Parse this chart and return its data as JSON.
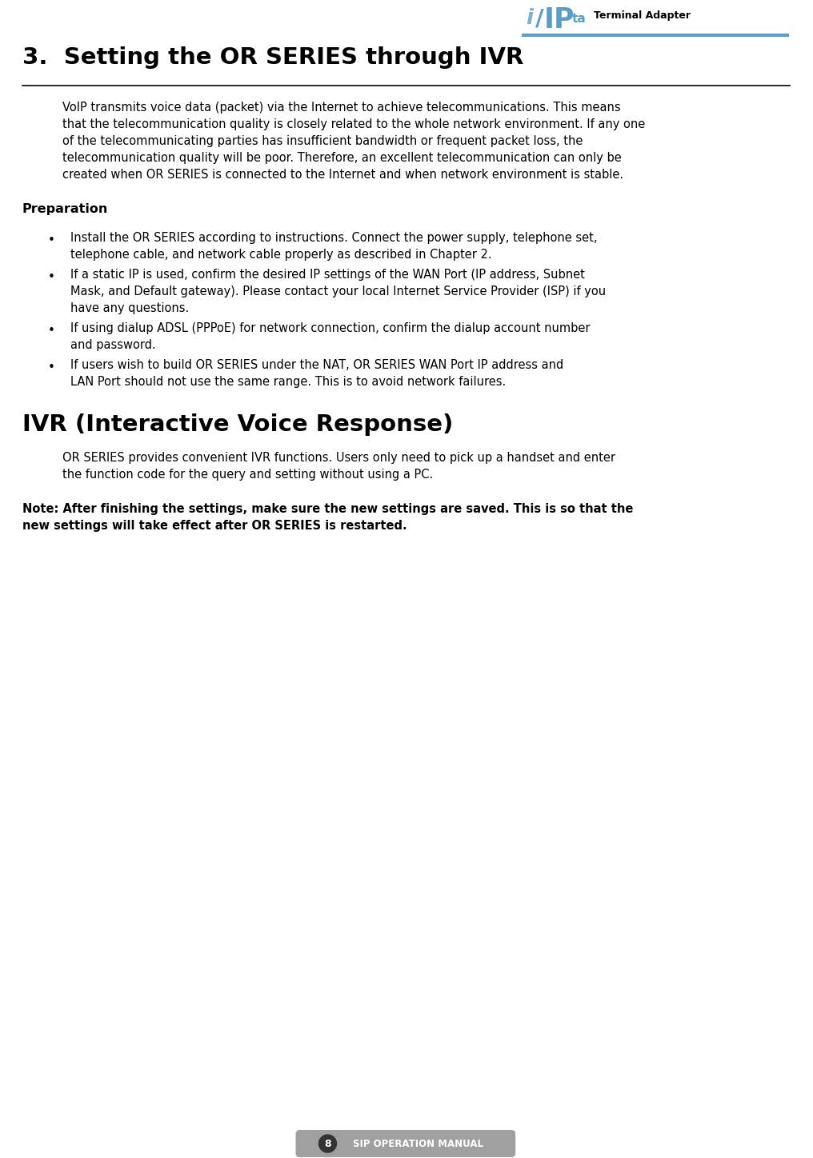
{
  "page_bg": "#ffffff",
  "page_number": "8",
  "footer_text": "SIP OPERATION MANUAL",
  "header_logo_text": "Terminal Adapter",
  "main_title": "3.  Setting the OR SERIES through IVR",
  "intro_lines": [
    "VoIP transmits voice data (packet) via the Internet to achieve telecommunications. This means",
    "that the telecommunication quality is closely related to the whole network environment. If any one",
    "of the telecommunicating parties has insufficient bandwidth or frequent packet loss, the",
    "telecommunication quality will be poor. Therefore, an excellent telecommunication can only be",
    "created when OR SERIES is connected to the Internet and when network environment is stable."
  ],
  "section1_title": "Preparation",
  "bullet_lines": [
    [
      "Install the OR SERIES according to instructions. Connect the power supply, telephone set,",
      "telephone cable, and network cable properly as described in Chapter 2."
    ],
    [
      "If a static IP is used, confirm the desired IP settings of the WAN Port (IP address, Subnet",
      "Mask, and Default gateway). Please contact your local Internet Service Provider (ISP) if you",
      "have any questions."
    ],
    [
      "If using dialup ADSL (PPPoE) for network connection, confirm the dialup account number",
      "and password."
    ],
    [
      "If users wish to build OR SERIES under the NAT, OR SERIES WAN Port IP address and",
      "LAN Port should not use the same range. This is to avoid network failures."
    ]
  ],
  "section2_title": "IVR (Interactive Voice Response)",
  "ivr_lines": [
    "OR SERIES provides convenient IVR functions. Users only need to pick up a handset and enter",
    "the function code for the query and setting without using a PC."
  ],
  "note_lines": [
    "Note: After finishing the settings, make sure the new settings are saved. This is so that the",
    "new settings will take effect after OR SERIES is restarted."
  ],
  "text_color": "#000000",
  "logo_blue": "#5a9ec8",
  "logo_blue_light": "#7ab0d0",
  "footer_bg": "#a0a0a0",
  "footer_circle_bg": "#333333"
}
